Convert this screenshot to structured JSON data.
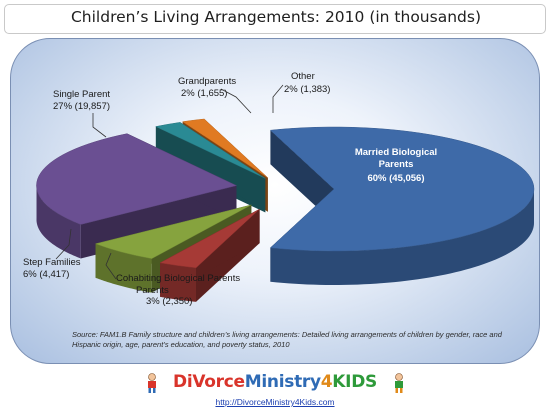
{
  "chart_data": {
    "type": "pie",
    "title": "Children’s Living Arrangements: 2010 (in thousands)",
    "slices": [
      {
        "name": "Married Biological Parents",
        "percent_label": "60%",
        "value": 45056,
        "value_label": "(45,056)",
        "color": "#3e6aa8"
      },
      {
        "name": "Cohabiting Biological Parents",
        "percent_label": "3%",
        "value": 2350,
        "value_label": "(2,350)",
        "color": "#a63a36"
      },
      {
        "name": "Step Families",
        "percent_label": "6%",
        "value": 4417,
        "value_label": "(4,417)",
        "color": "#86a33e"
      },
      {
        "name": "Single Parent",
        "percent_label": "27%",
        "value": 19857,
        "value_label": "(19,857)",
        "color": "#6a4f92"
      },
      {
        "name": "Grandparents",
        "percent_label": "2%",
        "value": 1655,
        "value_label": "(1,655)",
        "color": "#2a8a94"
      },
      {
        "name": "Other",
        "percent_label": "2%",
        "value": 1383,
        "value_label": "(1,383)",
        "color": "#e07a22"
      }
    ]
  },
  "source_note": "Source: FAM1.B Family structure and children’s living arrangements: Detailed living arrangements of children by gender, race and Hispanic origin, age, parent’s education, and poverty status, 2010",
  "logo": {
    "part1": "DiVorce",
    "part2": "Ministry",
    "part3": "4",
    "part4": "KIDS"
  },
  "url": "http://DivorceMinistry4Kids.com"
}
